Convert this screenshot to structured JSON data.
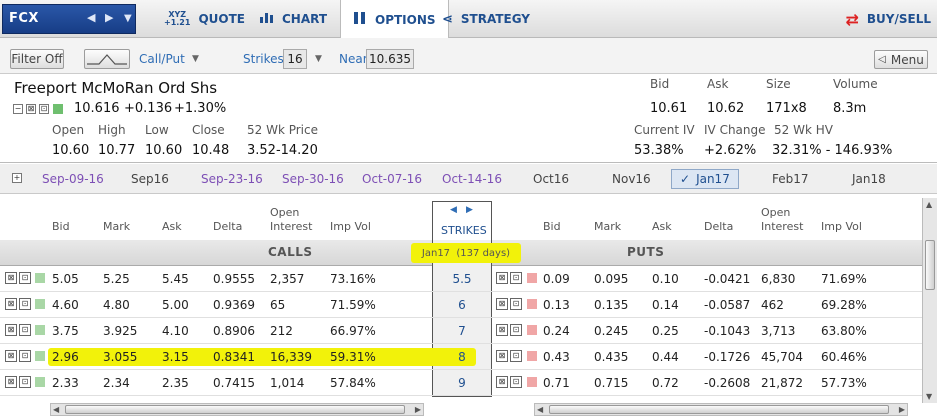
{
  "nav": {
    "symbol": "FCX",
    "tabs": [
      {
        "label": "QUOTE",
        "icon": "XYZ +1.21"
      },
      {
        "label": "CHART",
        "icon": "bar-chart-icon"
      },
      {
        "label": "OPTIONS",
        "icon": "options-icon"
      },
      {
        "label": "STRATEGY",
        "icon": "strategy-icon"
      }
    ],
    "buy_sell": "BUY/SELL"
  },
  "controls": {
    "filter": "Filter Off",
    "call_put": "Call/Put",
    "strikes_label": "Strikes",
    "strikes_value": "16",
    "near_label": "Near",
    "near_value": "10.635",
    "menu": "Menu"
  },
  "quote": {
    "name": "Freeport McMoRan Ord Shs",
    "last": "10.616",
    "change": "+0.136",
    "change_pct": "+1.30%",
    "open_label": "Open",
    "open": "10.60",
    "high_label": "High",
    "high": "10.77",
    "low_label": "Low",
    "low": "10.60",
    "close_label": "Close",
    "close": "10.48",
    "wk52_label": "52 Wk Price",
    "wk52": "3.52-14.20",
    "bid_label": "Bid",
    "bid": "10.61",
    "ask_label": "Ask",
    "ask": "10.62",
    "size_label": "Size",
    "size": "171x8",
    "volume_label": "Volume",
    "volume": "8.3m",
    "iv_label": "Current IV",
    "iv": "53.38%",
    "ivchg_label": "IV Change",
    "ivchg": "+2.62%",
    "hv_label": "52 Wk HV",
    "hv": "32.31% - 146.93%"
  },
  "months": [
    "Sep-09-16",
    "Sep16",
    "Sep-23-16",
    "Sep-30-16",
    "Oct-07-16",
    "Oct-14-16",
    "Oct16",
    "Nov16",
    "Jan17",
    "Feb17",
    "Jan18"
  ],
  "chain": {
    "calls_header": [
      "Bid",
      "Mark",
      "Ask",
      "Delta",
      "Open Interest",
      "Imp Vol"
    ],
    "puts_header": [
      "Bid",
      "Mark",
      "Ask",
      "Delta",
      "Open Interest",
      "Imp Vol"
    ],
    "calls_label": "CALLS",
    "puts_label": "PUTS",
    "strikes_label": "STRIKES",
    "expiry_label": "Jan17  (137 days)",
    "rows": [
      {
        "strike": "5.5",
        "call": [
          "5.05",
          "5.25",
          "5.45",
          "0.9555",
          "2,357",
          "73.16%"
        ],
        "put": [
          "0.09",
          "0.095",
          "0.10",
          "-0.0421",
          "6,830",
          "71.69%"
        ]
      },
      {
        "strike": "6",
        "call": [
          "4.60",
          "4.80",
          "5.00",
          "0.9369",
          "65",
          "71.59%"
        ],
        "put": [
          "0.13",
          "0.135",
          "0.14",
          "-0.0587",
          "462",
          "69.28%"
        ]
      },
      {
        "strike": "7",
        "call": [
          "3.75",
          "3.925",
          "4.10",
          "0.8906",
          "212",
          "66.97%"
        ],
        "put": [
          "0.24",
          "0.245",
          "0.25",
          "-0.1043",
          "3,713",
          "63.80%"
        ]
      },
      {
        "strike": "8",
        "call": [
          "2.96",
          "3.055",
          "3.15",
          "0.8341",
          "16,339",
          "59.31%"
        ],
        "put": [
          "0.43",
          "0.435",
          "0.44",
          "-0.1726",
          "45,704",
          "60.46%"
        ]
      },
      {
        "strike": "9",
        "call": [
          "2.33",
          "2.34",
          "2.35",
          "0.7415",
          "1,014",
          "57.84%"
        ],
        "put": [
          "0.71",
          "0.715",
          "0.72",
          "-0.2608",
          "21,872",
          "57.73%"
        ]
      }
    ]
  },
  "colors": {
    "highlight": "#f2f20a",
    "call_square": "#a9d7a6",
    "put_square": "#f0a6a6",
    "link": "#2f6db5",
    "month_purple": "#7d4fb5"
  }
}
